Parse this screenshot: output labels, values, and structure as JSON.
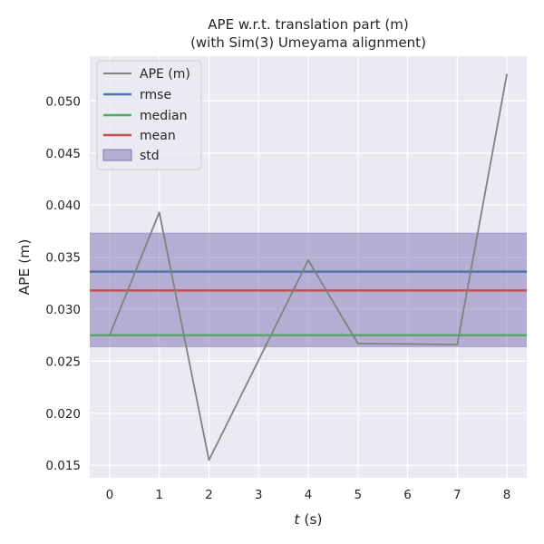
{
  "chart_data": {
    "type": "line",
    "title": "APE w.r.t. translation part (m)",
    "subtitle": "(with Sim(3) Umeyama alignment)",
    "xlabel_var": "t",
    "xlabel_unit": " (s)",
    "ylabel": "APE (m)",
    "xlim": [
      -0.4,
      8.4
    ],
    "ylim": [
      0.0138,
      0.0543
    ],
    "xticks": [
      0,
      1,
      2,
      3,
      4,
      5,
      6,
      7,
      8
    ],
    "xtick_labels": [
      "0",
      "1",
      "2",
      "3",
      "4",
      "5",
      "6",
      "7",
      "8"
    ],
    "yticks": [
      0.015,
      0.02,
      0.025,
      0.03,
      0.035,
      0.04,
      0.045,
      0.05
    ],
    "ytick_labels": [
      "0.015",
      "0.020",
      "0.025",
      "0.030",
      "0.035",
      "0.040",
      "0.045",
      "0.050"
    ],
    "grid": true,
    "legend_position": "upper-left",
    "series": [
      {
        "name": "APE (m)",
        "x": [
          0,
          1,
          2,
          4,
          5,
          7,
          8
        ],
        "y": [
          0.0275,
          0.0393,
          0.0155,
          0.0347,
          0.0267,
          0.0266,
          0.0526
        ],
        "color": "#808080"
      }
    ],
    "stats": {
      "rmse": {
        "name": "rmse",
        "value": 0.0336,
        "color": "#4c72b0"
      },
      "median": {
        "name": "median",
        "value": 0.0275,
        "color": "#55a868"
      },
      "mean": {
        "name": "mean",
        "value": 0.0318,
        "color": "#c44e52"
      },
      "std": {
        "name": "std",
        "lower": 0.0264,
        "upper": 0.0373,
        "color": "#8172b2"
      }
    },
    "background_color": "#eaeaf2",
    "grid_color": "#ffffff"
  }
}
